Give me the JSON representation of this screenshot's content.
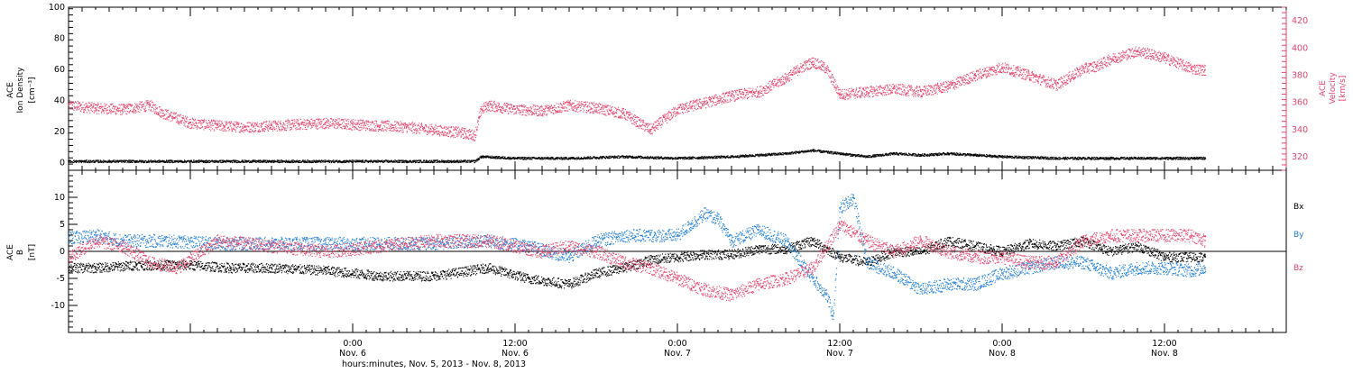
{
  "colors": {
    "black": "#000000",
    "red": "#e8446b",
    "blue": "#1f7fd8"
  },
  "x_axis": {
    "title": "hours:minutes, Nov. 5, 2013 - Nov. 8, 2013",
    "ticks": [
      {
        "time": "0:00",
        "day": "Nov. 6",
        "hour": 24
      },
      {
        "time": "12:00",
        "day": "Nov. 6",
        "hour": 36
      },
      {
        "time": "0:00",
        "day": "Nov. 7",
        "hour": 48
      },
      {
        "time": "12:00",
        "day": "Nov. 7",
        "hour": 60
      },
      {
        "time": "0:00",
        "day": "Nov. 8",
        "hour": 72
      },
      {
        "time": "12:00",
        "day": "Nov. 8",
        "hour": 84
      }
    ],
    "range_hours": [
      3,
      93
    ]
  },
  "chart_data": [
    {
      "type": "scatter",
      "panel": "top",
      "ylabel": [
        "ACE",
        "Ion Density",
        "[cm⁻³]"
      ],
      "ylim": [
        -5,
        100
      ],
      "yticks": [
        0,
        20,
        40,
        60,
        80,
        100
      ],
      "y2label": [
        "ACE",
        "Velocity",
        "[km/s]"
      ],
      "y2lim": [
        310,
        430
      ],
      "y2ticks": [
        320,
        340,
        360,
        380,
        400,
        420
      ],
      "series": [
        {
          "color": "red",
          "axis": "right",
          "x": [
            3,
            5,
            7,
            9,
            10,
            12,
            14,
            16,
            18,
            20,
            22,
            24,
            26,
            28,
            30,
            32,
            33,
            33.5,
            34,
            36,
            38,
            40,
            42,
            44,
            45,
            46,
            48,
            50,
            52,
            54,
            56,
            57,
            58,
            59,
            60,
            62,
            64,
            66,
            68,
            70,
            72,
            74,
            76,
            78,
            79,
            80,
            82,
            84,
            86,
            87
          ],
          "y": [
            358,
            356,
            355,
            358,
            352,
            345,
            343,
            342,
            343,
            344,
            345,
            344,
            343,
            342,
            340,
            338,
            336,
            355,
            358,
            355,
            354,
            358,
            356,
            352,
            346,
            340,
            355,
            360,
            365,
            368,
            378,
            385,
            390,
            385,
            366,
            368,
            370,
            368,
            372,
            380,
            386,
            380,
            373,
            385,
            387,
            392,
            398,
            393,
            385,
            384
          ]
        },
        {
          "color": "black",
          "axis": "left",
          "x": [
            3,
            8,
            13,
            18,
            23,
            28,
            33,
            33.5,
            36,
            40,
            44,
            48,
            52,
            56,
            58,
            60,
            62,
            64,
            66,
            68,
            70,
            72,
            76,
            80,
            84,
            87
          ],
          "y": [
            1,
            1,
            1,
            1,
            1,
            1,
            1,
            4,
            3,
            3,
            4,
            3,
            4,
            6,
            8,
            6,
            4,
            6,
            5,
            6,
            5,
            4,
            3,
            3,
            3,
            3
          ]
        }
      ]
    },
    {
      "type": "scatter",
      "panel": "bottom",
      "ylabel": [
        "ACE",
        "B",
        "[nT]"
      ],
      "ylim": [
        -15,
        15
      ],
      "yticks": [
        -10,
        -5,
        0,
        5,
        10
      ],
      "series": [
        {
          "name": "Bx",
          "color": "black",
          "x": [
            3,
            5,
            8,
            12,
            15,
            18,
            22,
            26,
            30,
            34,
            37,
            40,
            42,
            44,
            46,
            48,
            50,
            52,
            54,
            56,
            58,
            60,
            62,
            64,
            66,
            68,
            70,
            72,
            74,
            76,
            78,
            80,
            82,
            84,
            87
          ],
          "y": [
            -3,
            -3,
            -2.5,
            -2.5,
            -3,
            -3,
            -3.5,
            -4.5,
            -4.5,
            -3,
            -5,
            -6,
            -4,
            -3,
            -1.5,
            -1,
            -0.5,
            -0.5,
            0.5,
            0.5,
            2,
            -1,
            -2,
            0,
            0,
            2,
            1,
            0,
            1.5,
            1,
            2,
            0,
            1,
            -1,
            -1
          ]
        },
        {
          "name": "By",
          "color": "blue",
          "x": [
            3,
            5,
            7,
            10,
            14,
            18,
            22,
            26,
            30,
            34,
            37,
            40,
            42,
            44,
            46,
            48,
            49,
            50,
            51,
            52,
            54,
            56,
            58,
            59,
            59.5,
            60,
            61,
            62,
            64,
            66,
            68,
            70,
            72,
            74,
            76,
            78,
            80,
            82,
            84,
            86,
            87
          ],
          "y": [
            2.5,
            3,
            2,
            2,
            1.5,
            1.5,
            1.5,
            1.5,
            1.5,
            2,
            1,
            -1,
            2,
            3,
            3,
            3,
            5,
            7,
            6,
            2,
            4,
            2,
            -5,
            -8,
            -12,
            8,
            10,
            -2,
            -4,
            -7,
            -6,
            -6,
            -4,
            -3,
            -2,
            -2,
            -4,
            -3,
            -3,
            -3.5,
            -3
          ]
        },
        {
          "name": "Bz",
          "color": "red",
          "x": [
            3,
            5,
            7,
            9,
            11,
            14,
            18,
            22,
            26,
            30,
            34,
            36,
            38,
            40,
            42,
            44,
            46,
            48,
            50,
            52,
            54,
            56,
            58,
            60,
            62,
            64,
            66,
            68,
            70,
            72,
            74,
            76,
            78,
            80,
            82,
            84,
            86,
            87
          ],
          "y": [
            -1,
            2,
            1,
            -2,
            -3,
            2,
            1,
            0,
            1,
            2,
            2,
            1,
            0,
            1,
            0,
            -2,
            -3,
            -5,
            -7,
            -8,
            -6,
            -5,
            -3,
            5,
            2,
            0,
            2,
            0,
            -1,
            -1,
            -2,
            -2,
            2,
            3,
            3,
            3,
            3,
            2
          ]
        }
      ]
    }
  ]
}
